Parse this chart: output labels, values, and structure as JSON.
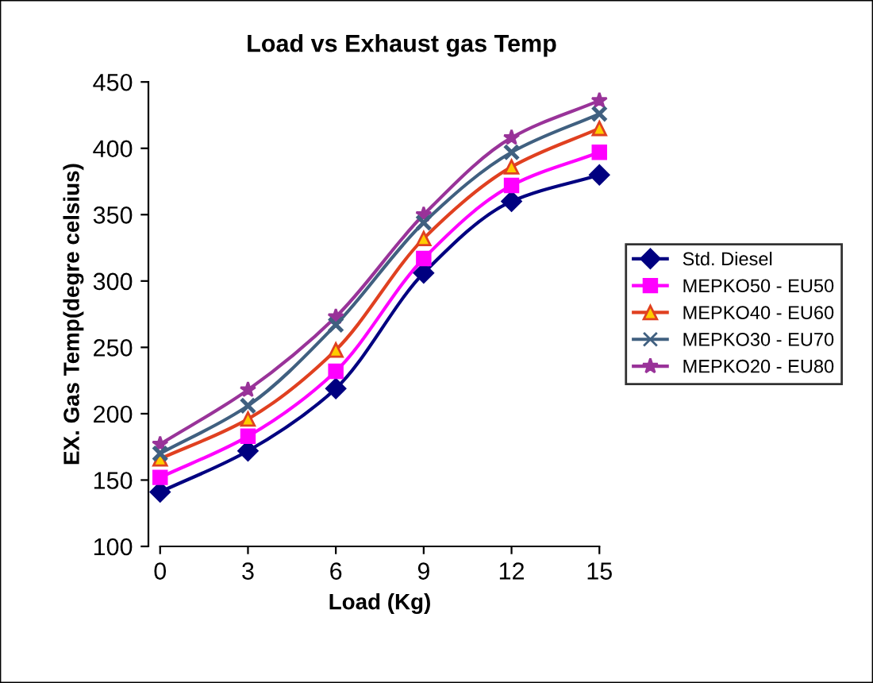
{
  "chart_data": {
    "type": "line",
    "title": "Load vs Exhaust gas Temp",
    "xlabel": "Load (Kg)",
    "ylabel": "EX. Gas Temp(degre celsius)",
    "x": [
      0,
      3,
      6,
      9,
      12,
      15
    ],
    "xlim": [
      0,
      15
    ],
    "xticks": [
      0,
      3,
      6,
      9,
      12,
      15
    ],
    "ylim": [
      100,
      450
    ],
    "yticks": [
      100,
      150,
      200,
      250,
      300,
      350,
      400,
      450
    ],
    "grid": false,
    "legend": "right",
    "line_style": "solid",
    "series": [
      {
        "name": "Std. Diesel",
        "color": "#000080",
        "marker": "diamond",
        "values": [
          141,
          172,
          219,
          306,
          360,
          380
        ]
      },
      {
        "name": "MEPKO50 - EU50",
        "color": "#ff00ff",
        "marker": "square",
        "values": [
          152,
          183,
          232,
          317,
          372,
          397
        ]
      },
      {
        "name": "MEPKO40 - EU60",
        "color": "#e04020",
        "marker": "triangle",
        "values": [
          166,
          196,
          248,
          332,
          386,
          415
        ]
      },
      {
        "name": "MEPKO30 - EU70",
        "color": "#406080",
        "marker": "cross",
        "values": [
          170,
          206,
          267,
          344,
          397,
          426
        ]
      },
      {
        "name": "MEPKO20 - EU80",
        "color": "#993399",
        "marker": "star",
        "values": [
          177,
          218,
          273,
          350,
          408,
          436
        ]
      }
    ]
  }
}
